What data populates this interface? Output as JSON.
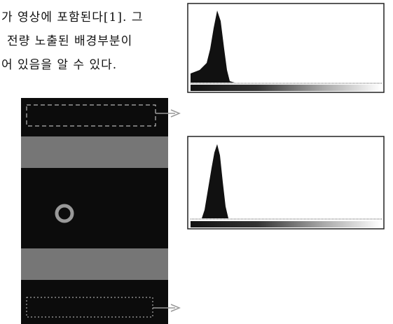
{
  "text": {
    "lines": [
      "가 영상에 포함된다[1]. 그",
      "전량 노출된 배경부분이",
      "어 있음을 알 수 있다."
    ]
  }
}
